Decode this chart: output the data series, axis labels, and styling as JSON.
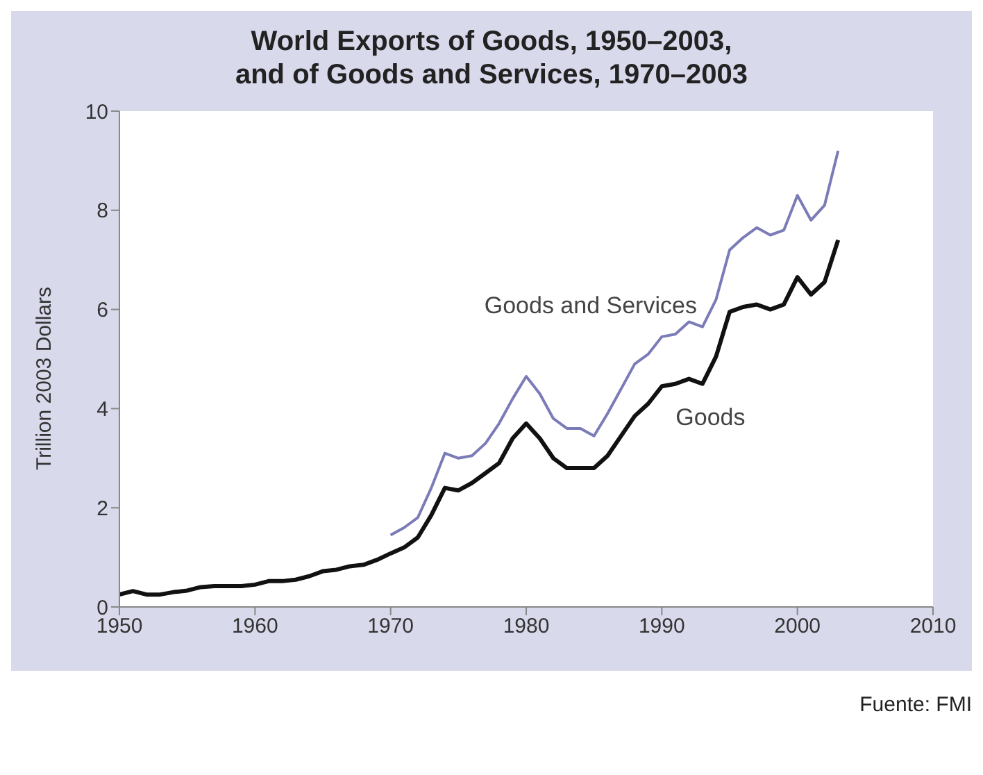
{
  "chart_data": {
    "type": "line",
    "title": "World Exports of Goods, 1950–2003,\nand of Goods and Services, 1970–2003",
    "ylabel": "Trillion 2003 Dollars",
    "xlim": [
      1950,
      2010
    ],
    "xticks": [
      1950,
      1960,
      1970,
      1980,
      1990,
      2000,
      2010
    ],
    "ylim": [
      0,
      10
    ],
    "yticks": [
      0,
      2,
      4,
      6,
      8,
      10
    ],
    "grid": false,
    "legend": false,
    "marker": "none",
    "line_style": "solid",
    "series": [
      {
        "name": "Goods and Services",
        "color": "#7b7bb8",
        "x": [
          1970,
          1971,
          1972,
          1973,
          1974,
          1975,
          1976,
          1977,
          1978,
          1979,
          1980,
          1981,
          1982,
          1983,
          1984,
          1985,
          1986,
          1987,
          1988,
          1989,
          1990,
          1991,
          1992,
          1993,
          1994,
          1995,
          1996,
          1997,
          1998,
          1999,
          2000,
          2001,
          2002,
          2003
        ],
        "values": [
          1.45,
          1.6,
          1.8,
          2.4,
          3.1,
          3.0,
          3.05,
          3.3,
          3.7,
          4.2,
          4.65,
          4.3,
          3.8,
          3.6,
          3.6,
          3.45,
          3.9,
          4.4,
          4.9,
          5.1,
          5.45,
          5.5,
          5.75,
          5.65,
          6.2,
          7.2,
          7.45,
          7.65,
          7.5,
          7.6,
          8.3,
          7.8,
          8.1,
          9.2
        ]
      },
      {
        "name": "Goods",
        "color": "#111111",
        "x": [
          1950,
          1951,
          1952,
          1953,
          1954,
          1955,
          1956,
          1957,
          1958,
          1959,
          1960,
          1961,
          1962,
          1963,
          1964,
          1965,
          1966,
          1967,
          1968,
          1969,
          1970,
          1971,
          1972,
          1973,
          1974,
          1975,
          1976,
          1977,
          1978,
          1979,
          1980,
          1981,
          1982,
          1983,
          1984,
          1985,
          1986,
          1987,
          1988,
          1989,
          1990,
          1991,
          1992,
          1993,
          1994,
          1995,
          1996,
          1997,
          1998,
          1999,
          2000,
          2001,
          2002,
          2003
        ],
        "values": [
          0.25,
          0.32,
          0.25,
          0.25,
          0.3,
          0.33,
          0.4,
          0.42,
          0.42,
          0.42,
          0.45,
          0.52,
          0.52,
          0.55,
          0.62,
          0.72,
          0.75,
          0.82,
          0.85,
          0.95,
          1.08,
          1.2,
          1.4,
          1.85,
          2.4,
          2.35,
          2.5,
          2.7,
          2.9,
          3.4,
          3.7,
          3.4,
          3.0,
          2.8,
          2.8,
          2.8,
          3.05,
          3.45,
          3.85,
          4.1,
          4.45,
          4.5,
          4.6,
          4.5,
          5.05,
          5.95,
          6.05,
          6.1,
          6.0,
          6.1,
          6.65,
          6.3,
          6.55,
          7.4
        ]
      }
    ],
    "annotations": [
      "Fuente: FMI"
    ]
  }
}
